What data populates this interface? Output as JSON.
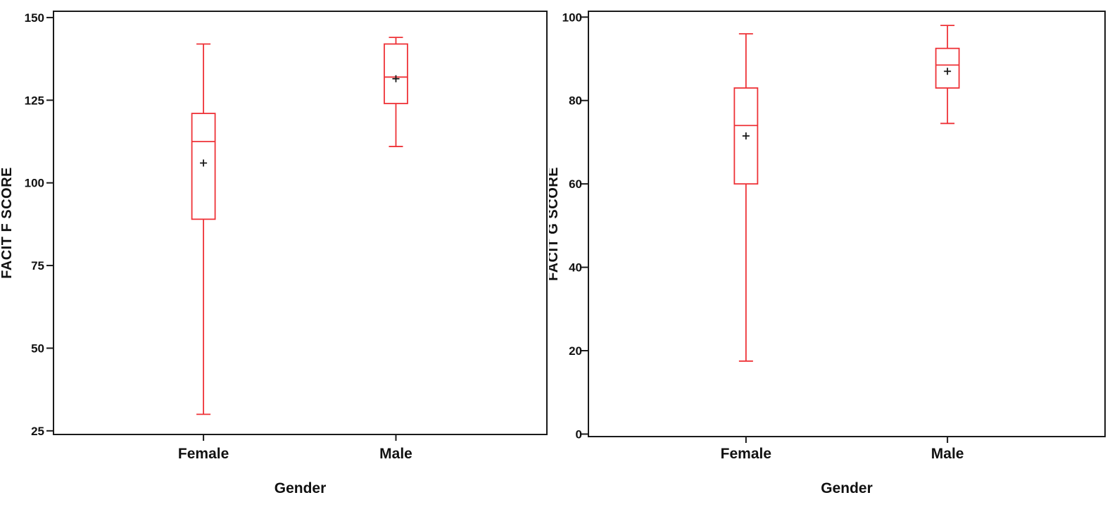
{
  "figure": {
    "background": "#ffffff",
    "box_color": "#ee3237",
    "axis_color": "#1a1a1a",
    "text_color": "#111111",
    "mean_marker": "plus"
  },
  "chart_data": [
    {
      "type": "boxplot",
      "title": "",
      "xlabel": "Gender",
      "ylabel": "FACIT F SCORE",
      "categories": [
        "Female",
        "Male"
      ],
      "yticks": [
        25,
        50,
        75,
        100,
        125,
        150
      ],
      "ylim": [
        23.9,
        151.9
      ],
      "grid": false,
      "legend": false,
      "series": [
        {
          "category": "Female",
          "min": 30,
          "q1": 89,
          "median": 112.5,
          "q3": 121,
          "max": 142,
          "mean": 106
        },
        {
          "category": "Male",
          "min": 111,
          "q1": 124,
          "median": 132,
          "q3": 142,
          "max": 144,
          "mean": 131.5
        }
      ]
    },
    {
      "type": "boxplot",
      "title": "",
      "xlabel": "Gender",
      "ylabel": "FACIT G SCORE",
      "categories": [
        "Female",
        "Male"
      ],
      "yticks": [
        0,
        20,
        40,
        60,
        80,
        100
      ],
      "ylim": [
        -0.6,
        101.4
      ],
      "grid": false,
      "legend": false,
      "series": [
        {
          "category": "Female",
          "min": 17.5,
          "q1": 60,
          "median": 74,
          "q3": 83,
          "max": 96,
          "mean": 71.5
        },
        {
          "category": "Male",
          "min": 74.5,
          "q1": 83,
          "median": 88.5,
          "q3": 92.5,
          "max": 98,
          "mean": 87
        }
      ]
    }
  ]
}
